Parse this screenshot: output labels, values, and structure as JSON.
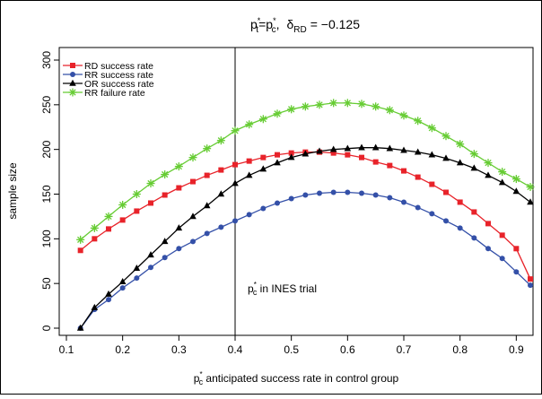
{
  "chart_data": {
    "type": "line",
    "title": {
      "p": "p",
      "sub_t": "t",
      "sub_c": "c",
      "sup": "*",
      "eq": "=",
      "sep": ",",
      "delta": "δ",
      "delta_sub": "RD",
      "value": "= −0.125"
    },
    "xlabel": {
      "p": "p",
      "sup": "*",
      "sub": "c",
      "text": " anticipated success rate in control group"
    },
    "ylabel": "sample size",
    "annotation": {
      "p": "p",
      "sup": "*",
      "sub": "c",
      "text": " in INES trial",
      "x": 0.4
    },
    "xlim": [
      0.1,
      0.925
    ],
    "ylim": [
      -5,
      315
    ],
    "x_ticks": [
      "0.1",
      "0.2",
      "0.3",
      "0.4",
      "0.5",
      "0.6",
      "0.7",
      "0.8",
      "0.9"
    ],
    "y_ticks": [
      "0",
      "50",
      "100",
      "150",
      "200",
      "250",
      "300"
    ],
    "x": [
      0.125,
      0.15,
      0.175,
      0.2,
      0.225,
      0.25,
      0.275,
      0.3,
      0.325,
      0.35,
      0.375,
      0.4,
      0.425,
      0.45,
      0.475,
      0.5,
      0.525,
      0.55,
      0.575,
      0.6,
      0.625,
      0.65,
      0.675,
      0.7,
      0.725,
      0.75,
      0.775,
      0.8,
      0.825,
      0.85,
      0.875,
      0.9,
      0.925
    ],
    "series": [
      {
        "name": "RD success rate",
        "color": "#e8232a",
        "marker": "square",
        "values": [
          87,
          100,
          111,
          121,
          131,
          140,
          149,
          157,
          164,
          171,
          177,
          183,
          187,
          191,
          194,
          196,
          197,
          197,
          196,
          194,
          191,
          186,
          182,
          176,
          169,
          161,
          152,
          141,
          130,
          117,
          104,
          89,
          55
        ]
      },
      {
        "name": "RR success rate",
        "color": "#3450a8",
        "marker": "circle",
        "values": [
          0,
          21,
          32,
          45,
          56,
          68,
          79,
          89,
          97,
          106,
          113,
          120,
          127,
          134,
          140,
          145,
          149,
          151,
          152,
          152,
          151,
          149,
          146,
          141,
          135,
          128,
          120,
          112,
          101,
          89,
          78,
          63,
          48
        ]
      },
      {
        "name": "OR success rate",
        "color": "#000000",
        "marker": "triangle",
        "values": [
          0,
          23,
          38,
          52,
          67,
          82,
          97,
          112,
          125,
          137,
          150,
          162,
          171,
          178,
          185,
          191,
          195,
          198,
          200,
          201,
          202,
          202,
          201,
          199,
          197,
          194,
          190,
          185,
          179,
          171,
          163,
          153,
          141
        ]
      },
      {
        "name": "RR failure rate",
        "color": "#66cc33",
        "marker": "star",
        "values": [
          99,
          112,
          125,
          138,
          150,
          162,
          172,
          181,
          191,
          201,
          210,
          221,
          228,
          234,
          240,
          245,
          248,
          250,
          252,
          252,
          251,
          248,
          244,
          238,
          232,
          224,
          215,
          206,
          195,
          185,
          175,
          167,
          158
        ]
      }
    ],
    "legend_position": "top-left",
    "grid": false
  }
}
